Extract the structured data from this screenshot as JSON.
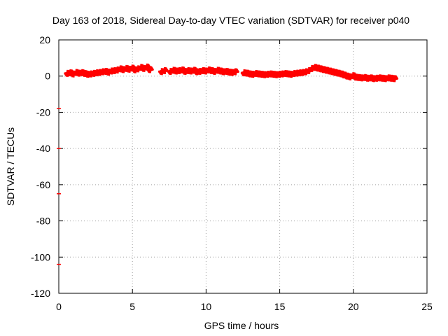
{
  "chart_data": {
    "type": "scatter",
    "title": "Day 163 of 2018, Sidereal Day-to-day VTEC variation (SDTVAR) for receiver p040",
    "xlabel": "GPS time / hours",
    "ylabel": "SDTVAR / TECUs",
    "xlim": [
      0,
      25
    ],
    "ylim": [
      -120,
      20
    ],
    "xticks": [
      0,
      5,
      10,
      15,
      20,
      25
    ],
    "yticks": [
      20,
      0,
      -20,
      -40,
      -60,
      -80,
      -100,
      -120
    ],
    "grid": true,
    "series_color": "#ff0000",
    "series": [
      {
        "name": "SDTVAR",
        "x": [
          0.6,
          0.8,
          1.0,
          1.2,
          1.4,
          1.6,
          1.8,
          2.0,
          2.2,
          2.4,
          2.6,
          2.8,
          3.0,
          3.2,
          3.4,
          3.6,
          3.8,
          4.0,
          4.2,
          4.4,
          4.6,
          4.8,
          5.0,
          5.2,
          5.4,
          5.6,
          5.8,
          6.0,
          6.2,
          7.0,
          7.2,
          7.6,
          7.8,
          8.0,
          8.2,
          8.4,
          8.6,
          8.8,
          9.0,
          9.2,
          9.4,
          9.6,
          9.8,
          10.0,
          10.2,
          10.4,
          10.6,
          10.8,
          11.0,
          11.2,
          11.4,
          11.6,
          11.8,
          12.0,
          12.6,
          12.8,
          13.0,
          13.2,
          13.4,
          13.6,
          13.8,
          14.0,
          14.2,
          14.4,
          14.6,
          14.8,
          15.0,
          15.2,
          15.4,
          15.6,
          15.8,
          16.0,
          16.2,
          16.4,
          16.6,
          16.8,
          17.0,
          17.2,
          17.4,
          17.6,
          17.8,
          18.0,
          18.2,
          18.4,
          18.6,
          18.8,
          19.0,
          19.2,
          19.4,
          19.6,
          19.8,
          20.0,
          20.2,
          20.4,
          20.6,
          20.8,
          21.0,
          21.2,
          21.4,
          21.6,
          21.8,
          22.0,
          22.2,
          22.4,
          22.6,
          22.8
        ],
        "y": [
          1.5,
          1.8,
          1.2,
          2.0,
          1.6,
          1.9,
          1.4,
          1.0,
          1.2,
          1.5,
          1.8,
          2.0,
          2.4,
          2.6,
          2.2,
          2.8,
          3.0,
          3.4,
          4.0,
          3.6,
          4.2,
          3.8,
          4.4,
          3.5,
          4.0,
          4.8,
          4.2,
          5.0,
          3.6,
          2.5,
          3.0,
          2.6,
          3.2,
          2.8,
          3.0,
          3.4,
          2.6,
          3.0,
          2.8,
          3.2,
          2.4,
          2.6,
          3.0,
          2.8,
          3.4,
          3.0,
          2.6,
          3.2,
          2.8,
          2.4,
          2.6,
          2.2,
          2.0,
          2.4,
          1.8,
          1.6,
          1.2,
          1.0,
          1.4,
          1.2,
          1.0,
          0.8,
          1.0,
          1.2,
          1.0,
          0.8,
          1.0,
          1.2,
          1.4,
          1.2,
          1.0,
          1.4,
          1.6,
          1.8,
          2.0,
          2.4,
          3.0,
          4.2,
          4.8,
          4.4,
          4.0,
          3.6,
          3.2,
          2.8,
          2.4,
          2.0,
          1.6,
          1.2,
          0.6,
          0.0,
          -0.4,
          0.2,
          -0.6,
          -0.8,
          -1.0,
          -0.8,
          -1.2,
          -1.0,
          -1.4,
          -1.2,
          -1.0,
          -1.2,
          -1.4,
          -1.0,
          -1.2,
          -1.4
        ],
        "stray_x": [
          0.0,
          0.0,
          0.0,
          0.0
        ],
        "stray_y": [
          -18,
          -40,
          -65,
          -104
        ]
      }
    ]
  }
}
